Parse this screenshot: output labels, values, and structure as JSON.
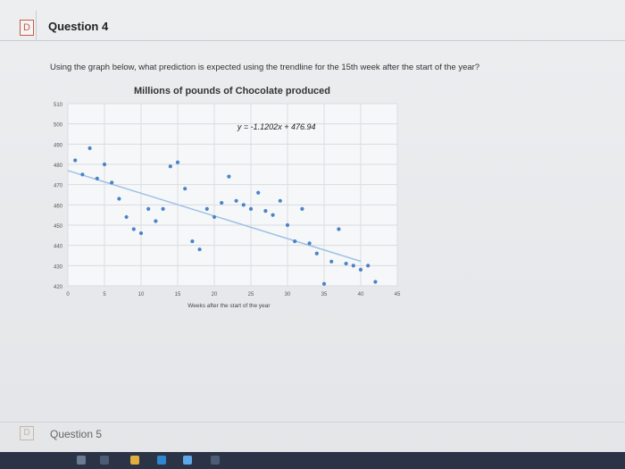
{
  "question4": {
    "title": "Question 4",
    "prompt": "Using the graph below, what prediction is expected using the trendline for the 15th week after the start of the year?",
    "flag_icon": "flag-icon"
  },
  "question5": {
    "title": "Question 5",
    "flag_icon": "flag-icon"
  },
  "chart_data": {
    "type": "scatter",
    "title": "Millions of pounds of Chocolate produced",
    "xlabel": "Weeks after the start of the year",
    "ylabel": "",
    "trendline_label": "y = -1.1202x + 476.94",
    "xlim": [
      0,
      45
    ],
    "ylim": [
      420,
      510
    ],
    "xticks": [
      0,
      5,
      10,
      15,
      20,
      25,
      30,
      35,
      40,
      45
    ],
    "yticks": [
      420,
      430,
      440,
      450,
      460,
      470,
      480,
      490,
      500,
      510
    ],
    "grid": true,
    "trendline": {
      "slope": -1.1202,
      "intercept": 476.94,
      "x0": 0,
      "x1": 40
    },
    "points": [
      {
        "x": 1,
        "y": 482
      },
      {
        "x": 2,
        "y": 475
      },
      {
        "x": 3,
        "y": 488
      },
      {
        "x": 4,
        "y": 473
      },
      {
        "x": 5,
        "y": 480
      },
      {
        "x": 6,
        "y": 471
      },
      {
        "x": 7,
        "y": 463
      },
      {
        "x": 8,
        "y": 454
      },
      {
        "x": 9,
        "y": 448
      },
      {
        "x": 10,
        "y": 446
      },
      {
        "x": 11,
        "y": 458
      },
      {
        "x": 12,
        "y": 452
      },
      {
        "x": 13,
        "y": 458
      },
      {
        "x": 14,
        "y": 479
      },
      {
        "x": 15,
        "y": 481
      },
      {
        "x": 16,
        "y": 468
      },
      {
        "x": 17,
        "y": 442
      },
      {
        "x": 18,
        "y": 438
      },
      {
        "x": 19,
        "y": 458
      },
      {
        "x": 20,
        "y": 454
      },
      {
        "x": 21,
        "y": 461
      },
      {
        "x": 22,
        "y": 474
      },
      {
        "x": 23,
        "y": 462
      },
      {
        "x": 24,
        "y": 460
      },
      {
        "x": 25,
        "y": 458
      },
      {
        "x": 26,
        "y": 466
      },
      {
        "x": 27,
        "y": 457
      },
      {
        "x": 28,
        "y": 455
      },
      {
        "x": 29,
        "y": 462
      },
      {
        "x": 30,
        "y": 450
      },
      {
        "x": 31,
        "y": 442
      },
      {
        "x": 32,
        "y": 458
      },
      {
        "x": 33,
        "y": 441
      },
      {
        "x": 34,
        "y": 436
      },
      {
        "x": 35,
        "y": 421
      },
      {
        "x": 36,
        "y": 432
      },
      {
        "x": 37,
        "y": 448
      },
      {
        "x": 38,
        "y": 431
      },
      {
        "x": 39,
        "y": 430
      },
      {
        "x": 40,
        "y": 428
      },
      {
        "x": 41,
        "y": 430
      },
      {
        "x": 42,
        "y": 422
      }
    ],
    "colors": {
      "point": "#4a84c8",
      "trend": "#9ec0e6",
      "grid": "#d9dde2"
    }
  }
}
